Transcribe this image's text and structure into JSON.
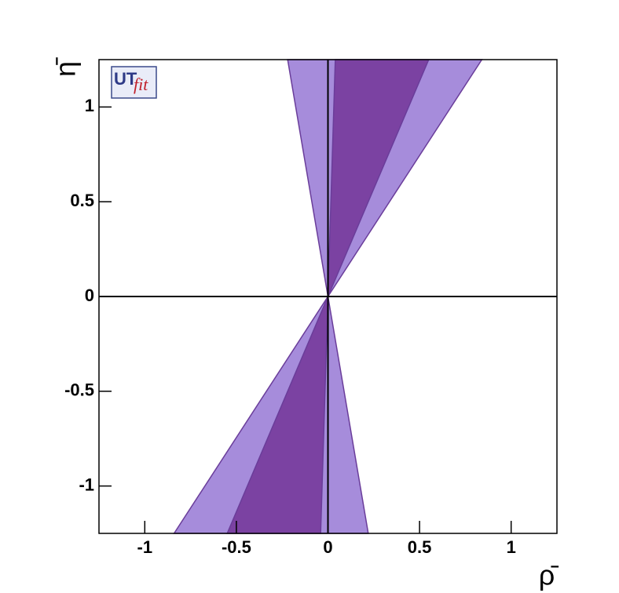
{
  "chart_data": {
    "type": "area",
    "x_label": "ρ̄",
    "y_label": "η̄",
    "logo": {
      "main": "UT",
      "sub": "fit"
    },
    "xlim": [
      -1.25,
      1.25
    ],
    "ylim": [
      -1.25,
      1.25
    ],
    "xticks": [
      -1,
      -0.5,
      0,
      0.5,
      1
    ],
    "yticks": [
      -1,
      -0.5,
      0,
      0.5,
      1
    ],
    "series": [
      {
        "color": "#a68cdb",
        "x": [
          0,
          -0.22,
          0.84,
          null,
          0,
          -0.84,
          0.22
        ],
        "y": [
          0,
          1.25,
          1.25,
          null,
          0,
          -1.25,
          -1.25
        ]
      },
      {
        "color": "#7b42a2",
        "x": [
          0,
          0.04,
          0.55,
          null,
          0,
          -0.55,
          -0.04
        ],
        "y": [
          0,
          1.25,
          1.25,
          null,
          0,
          -1.25,
          -1.25
        ]
      }
    ]
  }
}
